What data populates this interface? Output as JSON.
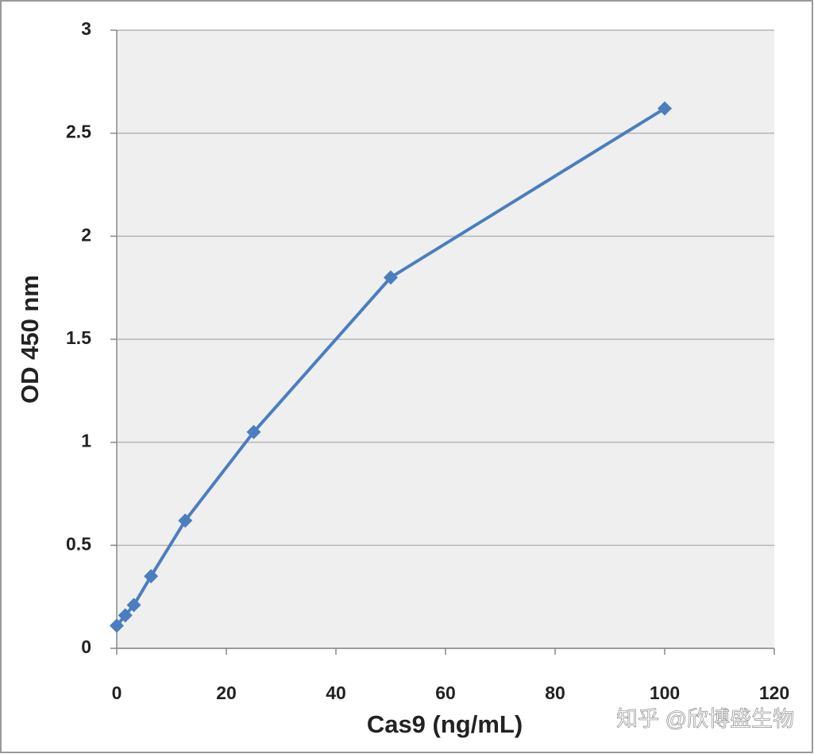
{
  "chart_data": {
    "type": "line",
    "x_label": "Cas9 (ng/mL)",
    "y_label": "OD 450 nm",
    "x": [
      0,
      1.5625,
      3.125,
      6.25,
      12.5,
      25,
      50,
      100
    ],
    "series": [
      {
        "color": "#4a7ebf",
        "values": [
          0.11,
          0.16,
          0.21,
          0.35,
          0.62,
          1.05,
          1.8,
          2.62
        ]
      }
    ],
    "xlim": [
      0,
      120
    ],
    "xticks": [
      0,
      20,
      40,
      60,
      80,
      100,
      120
    ],
    "ylim": [
      0,
      3
    ],
    "yticks": [
      0,
      0.5,
      1,
      1.5,
      2,
      2.5,
      3
    ],
    "grid": true,
    "marker": "diamond",
    "watermark": "知乎 @欣博盛生物"
  }
}
